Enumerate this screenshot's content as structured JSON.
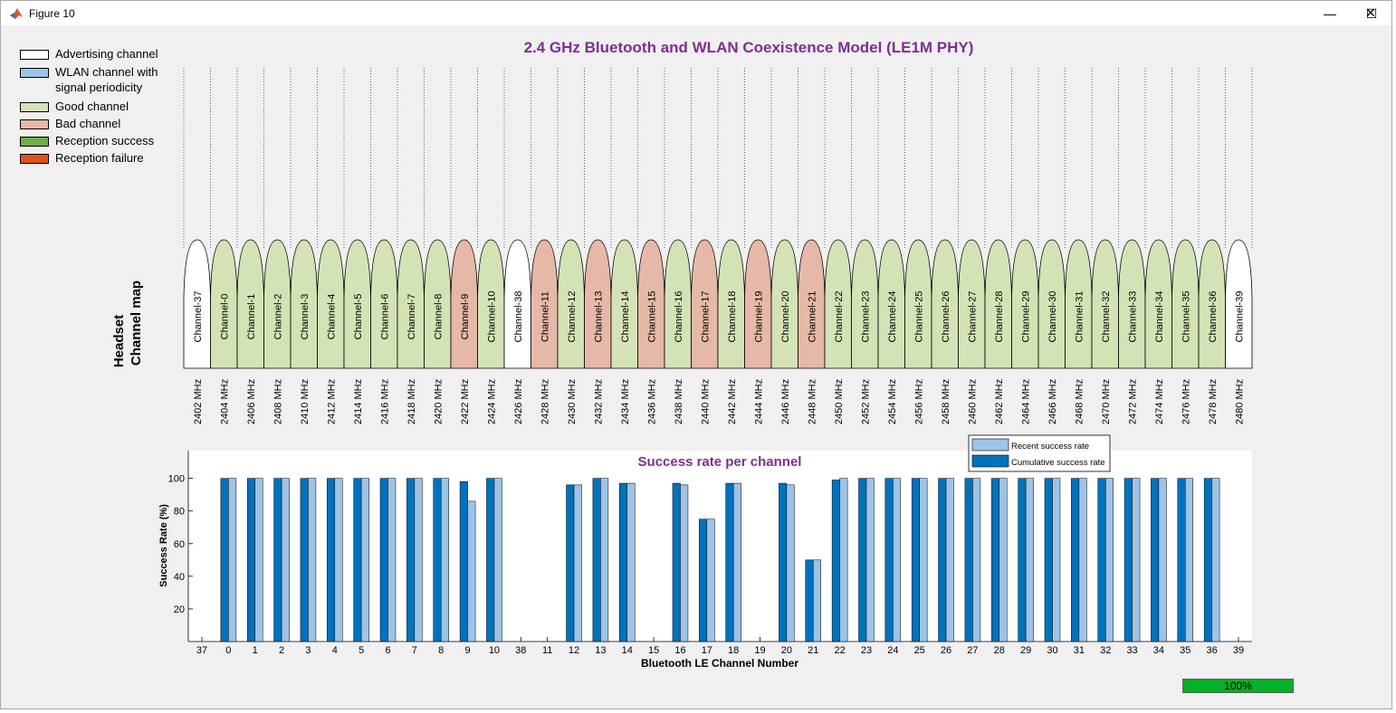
{
  "window": {
    "title": "Figure 10",
    "minimize_icon": "minimize-icon",
    "maximize_icon": "maximize-icon",
    "close_icon": "close-icon",
    "minimize_glyph": "—",
    "maximize_glyph": "☐",
    "close_glyph": "✕"
  },
  "legend": [
    {
      "label": "Advertising channel",
      "color": "#ffffff"
    },
    {
      "label": "WLAN channel with",
      "label2": "signal periodicity",
      "color": "#9dc3e6"
    },
    {
      "label": "Good channel",
      "color": "#d4e3b5"
    },
    {
      "label": "Bad channel",
      "color": "#e6b8a8"
    },
    {
      "label": "Reception success",
      "color": "#70ad47"
    },
    {
      "label": "Reception failure",
      "color": "#e2531a"
    }
  ],
  "title": "2.4 GHz Bluetooth and WLAN Coexistence Model (LE1M PHY)",
  "channel_map": {
    "ylabel_line1": "Headset",
    "ylabel_line2": "Channel map",
    "colors": {
      "advertising": "#ffffff",
      "good": "#d4e3b5",
      "bad": "#e6b8a8"
    },
    "channels": [
      {
        "name": "Channel-37",
        "freq": "2402 MHz",
        "state": "advertising"
      },
      {
        "name": "Channel-0",
        "freq": "2404 MHz",
        "state": "good"
      },
      {
        "name": "Channel-1",
        "freq": "2406 MHz",
        "state": "good"
      },
      {
        "name": "Channel-2",
        "freq": "2408 MHz",
        "state": "good"
      },
      {
        "name": "Channel-3",
        "freq": "2410 MHz",
        "state": "good"
      },
      {
        "name": "Channel-4",
        "freq": "2412 MHz",
        "state": "good"
      },
      {
        "name": "Channel-5",
        "freq": "2414 MHz",
        "state": "good"
      },
      {
        "name": "Channel-6",
        "freq": "2416 MHz",
        "state": "good"
      },
      {
        "name": "Channel-7",
        "freq": "2418 MHz",
        "state": "good"
      },
      {
        "name": "Channel-8",
        "freq": "2420 MHz",
        "state": "good"
      },
      {
        "name": "Channel-9",
        "freq": "2422 MHz",
        "state": "bad"
      },
      {
        "name": "Channel-10",
        "freq": "2424 MHz",
        "state": "good"
      },
      {
        "name": "Channel-38",
        "freq": "2426 MHz",
        "state": "advertising"
      },
      {
        "name": "Channel-11",
        "freq": "2428 MHz",
        "state": "bad"
      },
      {
        "name": "Channel-12",
        "freq": "2430 MHz",
        "state": "good"
      },
      {
        "name": "Channel-13",
        "freq": "2432 MHz",
        "state": "bad"
      },
      {
        "name": "Channel-14",
        "freq": "2434 MHz",
        "state": "good"
      },
      {
        "name": "Channel-15",
        "freq": "2436 MHz",
        "state": "bad"
      },
      {
        "name": "Channel-16",
        "freq": "2438 MHz",
        "state": "good"
      },
      {
        "name": "Channel-17",
        "freq": "2440 MHz",
        "state": "bad"
      },
      {
        "name": "Channel-18",
        "freq": "2442 MHz",
        "state": "good"
      },
      {
        "name": "Channel-19",
        "freq": "2444 MHz",
        "state": "bad"
      },
      {
        "name": "Channel-20",
        "freq": "2446 MHz",
        "state": "good"
      },
      {
        "name": "Channel-21",
        "freq": "2448 MHz",
        "state": "bad"
      },
      {
        "name": "Channel-22",
        "freq": "2450 MHz",
        "state": "good"
      },
      {
        "name": "Channel-23",
        "freq": "2452 MHz",
        "state": "good"
      },
      {
        "name": "Channel-24",
        "freq": "2454 MHz",
        "state": "good"
      },
      {
        "name": "Channel-25",
        "freq": "2456 MHz",
        "state": "good"
      },
      {
        "name": "Channel-26",
        "freq": "2458 MHz",
        "state": "good"
      },
      {
        "name": "Channel-27",
        "freq": "2460 MHz",
        "state": "good"
      },
      {
        "name": "Channel-28",
        "freq": "2462 MHz",
        "state": "good"
      },
      {
        "name": "Channel-29",
        "freq": "2464 MHz",
        "state": "good"
      },
      {
        "name": "Channel-30",
        "freq": "2466 MHz",
        "state": "good"
      },
      {
        "name": "Channel-31",
        "freq": "2468 MHz",
        "state": "good"
      },
      {
        "name": "Channel-32",
        "freq": "2470 MHz",
        "state": "good"
      },
      {
        "name": "Channel-33",
        "freq": "2472 MHz",
        "state": "good"
      },
      {
        "name": "Channel-34",
        "freq": "2474 MHz",
        "state": "good"
      },
      {
        "name": "Channel-35",
        "freq": "2476 MHz",
        "state": "good"
      },
      {
        "name": "Channel-36",
        "freq": "2478 MHz",
        "state": "good"
      },
      {
        "name": "Channel-39",
        "freq": "2480 MHz",
        "state": "advertising"
      }
    ]
  },
  "chart_data": {
    "type": "bar",
    "title": "Success rate per channel",
    "xlabel": "Bluetooth LE Channel Number",
    "ylabel": "Success Rate (%)",
    "ylim": [
      0,
      117
    ],
    "yticks": [
      20,
      40,
      60,
      80,
      100
    ],
    "grid": false,
    "legend_position": "top-right",
    "categories": [
      "37",
      "0",
      "1",
      "2",
      "3",
      "4",
      "5",
      "6",
      "7",
      "8",
      "9",
      "10",
      "38",
      "11",
      "12",
      "13",
      "14",
      "15",
      "16",
      "17",
      "18",
      "19",
      "20",
      "21",
      "22",
      "23",
      "24",
      "25",
      "26",
      "27",
      "28",
      "29",
      "30",
      "31",
      "32",
      "33",
      "34",
      "35",
      "36",
      "39"
    ],
    "series": [
      {
        "name": "Cumulative success rate",
        "color": "#0072bd",
        "values": [
          0,
          100,
          100,
          100,
          100,
          100,
          100,
          100,
          100,
          100,
          98,
          100,
          0,
          0,
          96,
          100,
          97,
          0,
          97,
          75,
          97,
          0,
          97,
          50,
          99,
          100,
          100,
          100,
          100,
          100,
          100,
          100,
          100,
          100,
          100,
          100,
          100,
          100,
          100,
          0
        ]
      },
      {
        "name": "Recent success rate",
        "color": "#9dc3e6",
        "values": [
          0,
          100,
          100,
          100,
          100,
          100,
          100,
          100,
          100,
          100,
          86,
          100,
          0,
          0,
          96,
          100,
          97,
          0,
          96,
          75,
          97,
          0,
          96,
          50,
          100,
          100,
          100,
          100,
          100,
          100,
          100,
          100,
          100,
          100,
          100,
          100,
          100,
          100,
          100,
          0
        ]
      }
    ]
  },
  "progress": {
    "value": 1.0,
    "label": "100%",
    "color": "#06b025"
  }
}
